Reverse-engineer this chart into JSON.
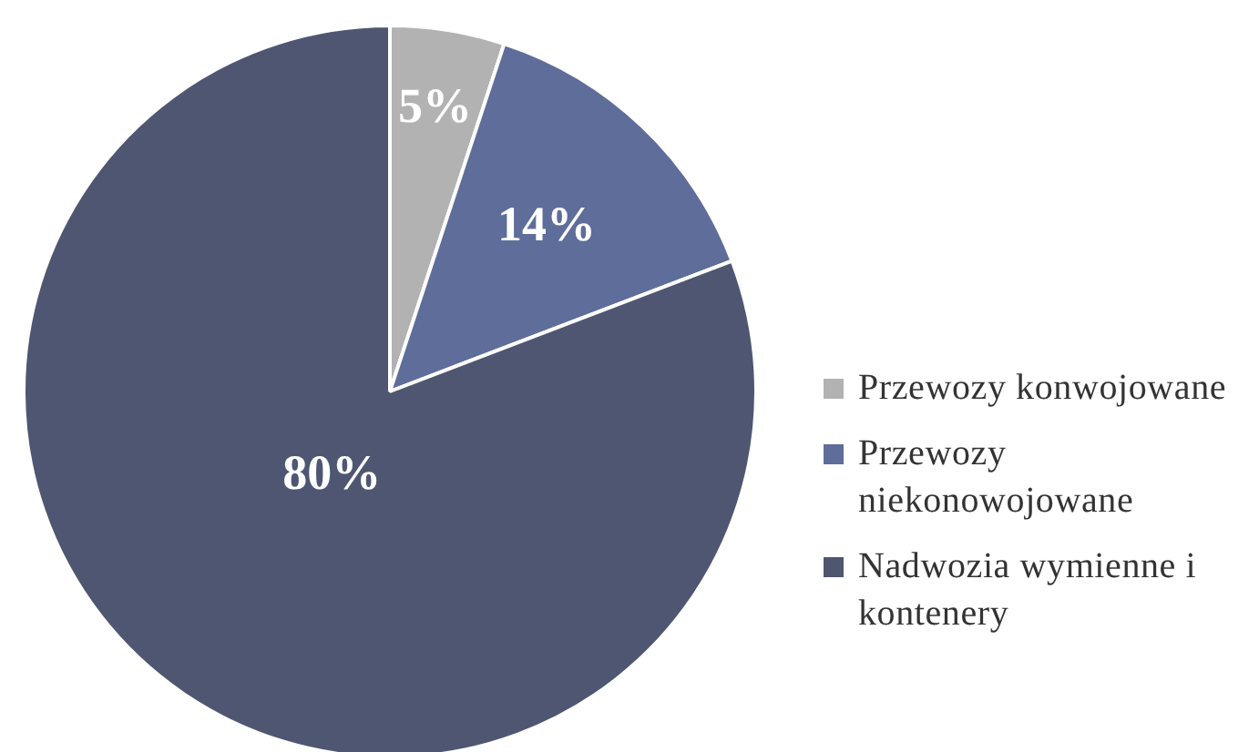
{
  "chart_data": {
    "type": "pie",
    "categories": [
      "Przewozy konwojowane",
      "Przewozy niekonowojowane",
      "Nadwozia wymienne i kontenery"
    ],
    "values": [
      5,
      14,
      80
    ],
    "value_labels": [
      "5%",
      "14%",
      "80%"
    ],
    "colors": [
      "#b2b2b2",
      "#5e6d9a",
      "#4f5672"
    ],
    "legend": "right"
  }
}
